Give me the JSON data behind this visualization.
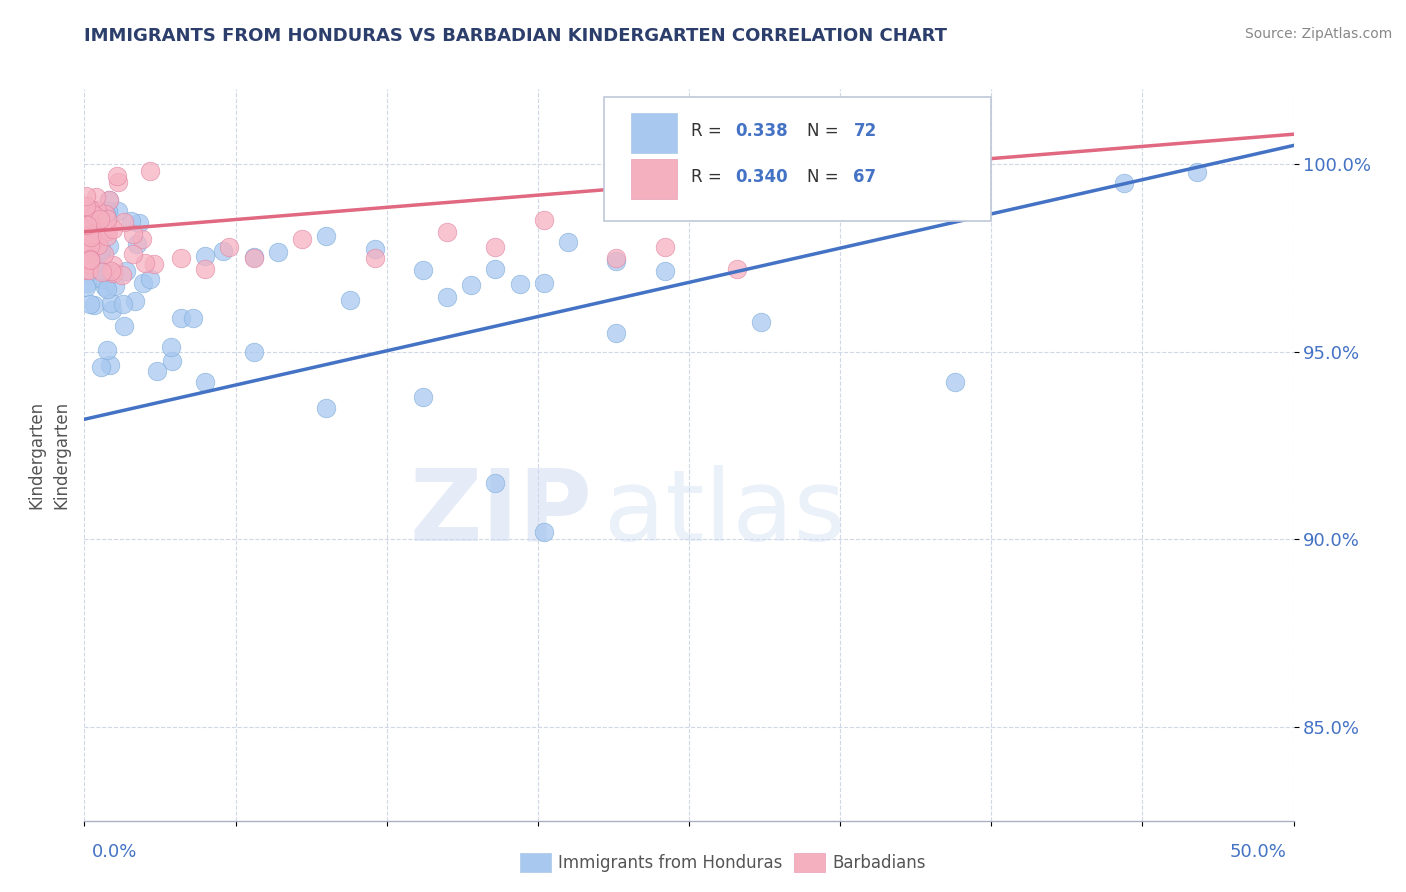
{
  "title": "IMMIGRANTS FROM HONDURAS VS BARBADIAN KINDERGARTEN CORRELATION CHART",
  "source_text": "Source: ZipAtlas.com",
  "ylabel": "Kindergarten",
  "ytick_values": [
    85.0,
    90.0,
    95.0,
    100.0
  ],
  "ytick_labels": [
    "85.0%",
    "90.0%",
    "95.0%",
    "100.0%"
  ],
  "xlim": [
    0.0,
    50.0
  ],
  "ylim": [
    82.5,
    102.0
  ],
  "watermark_zip": "ZIP",
  "watermark_atlas": "atlas",
  "title_color": "#2c3e6b",
  "axis_label_color": "#4472c4",
  "grid_color": "#d0d8e8",
  "blue_scatter_color": "#a8c8f0",
  "blue_edge_color": "#7aaad8",
  "blue_line_color": "#4472c4",
  "pink_scatter_color": "#f5b0c0",
  "pink_edge_color": "#e080a0",
  "pink_line_color": "#e06880",
  "legend_R_blue": "0.338",
  "legend_N_blue": "72",
  "legend_R_pink": "0.340",
  "legend_N_pink": "67",
  "blue_trend_x0": 0.0,
  "blue_trend_y0": 93.2,
  "blue_trend_x1": 50.0,
  "blue_trend_y1": 100.5,
  "pink_trend_x0": 0.0,
  "pink_trend_y0": 98.2,
  "pink_trend_x1": 50.0,
  "pink_trend_y1": 100.8,
  "bottom_legend_blue": "Immigrants from Honduras",
  "bottom_legend_pink": "Barbadians"
}
